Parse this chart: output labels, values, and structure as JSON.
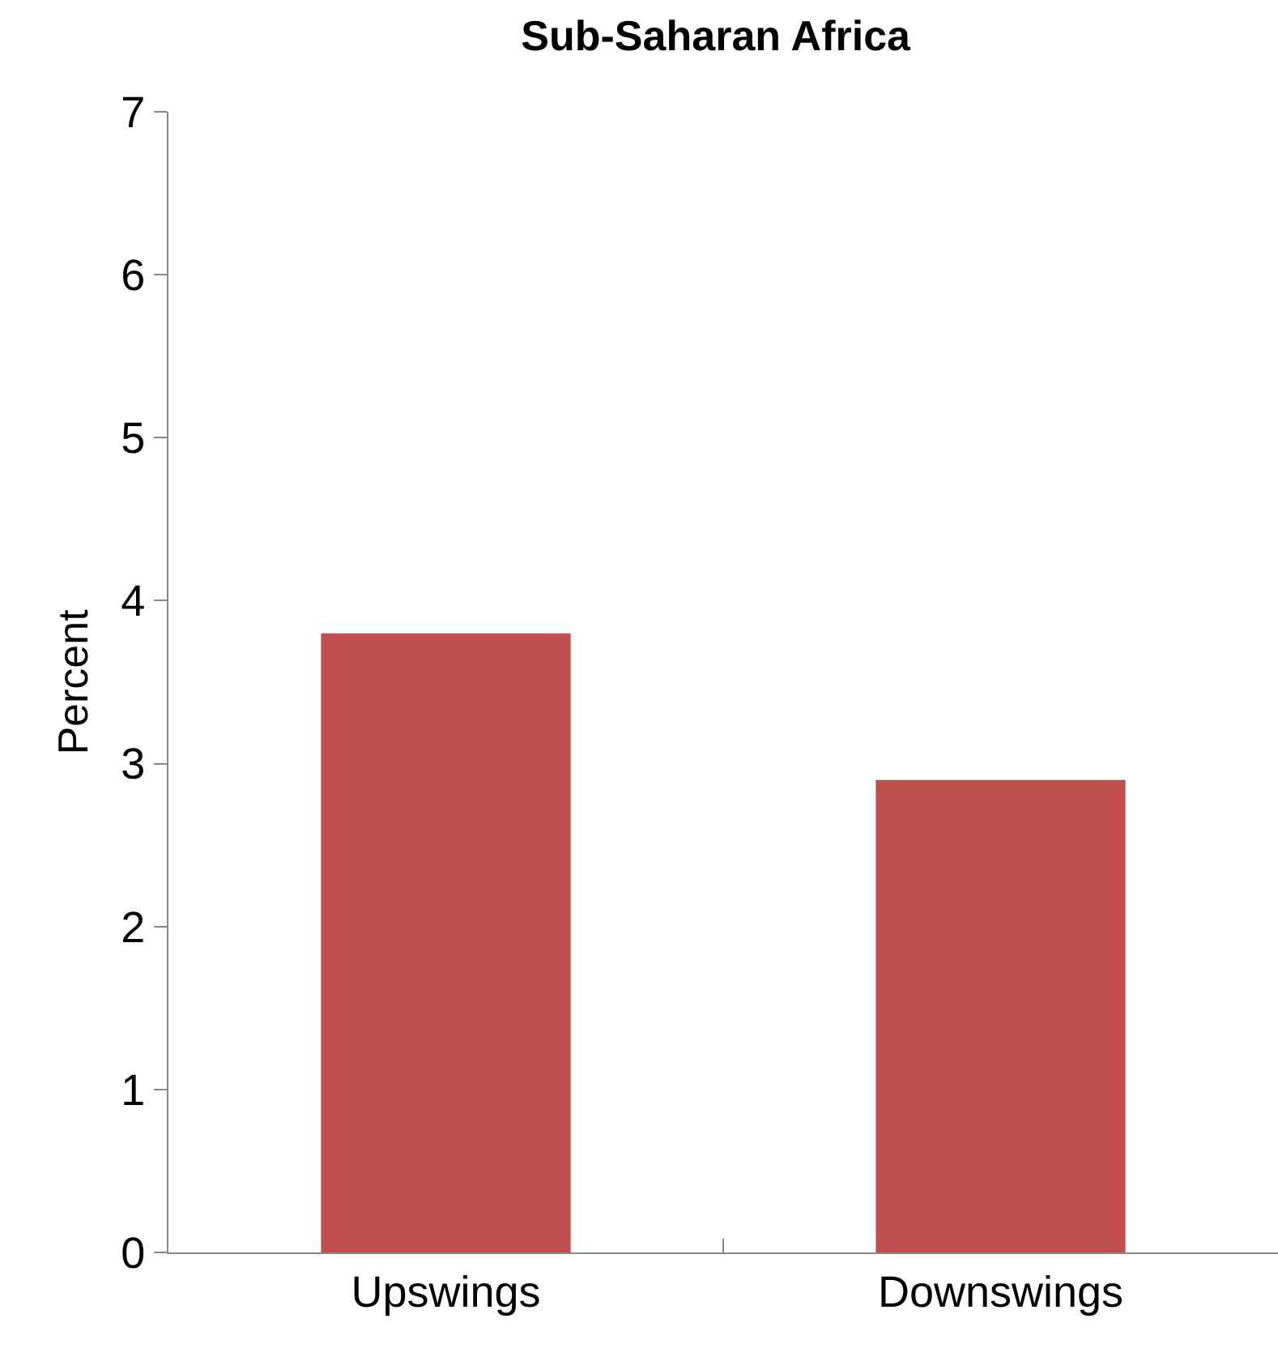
{
  "chart_data": {
    "type": "bar",
    "title": "Sub-Saharan Africa",
    "ylabel": "Percent",
    "categories": [
      "Upswings",
      "Downswings"
    ],
    "values": [
      3.8,
      2.9
    ],
    "color": "#c0504d",
    "ylim": [
      0,
      7
    ],
    "yticks": [
      0,
      1,
      2,
      3,
      4,
      5,
      6,
      7
    ],
    "grid": false
  }
}
